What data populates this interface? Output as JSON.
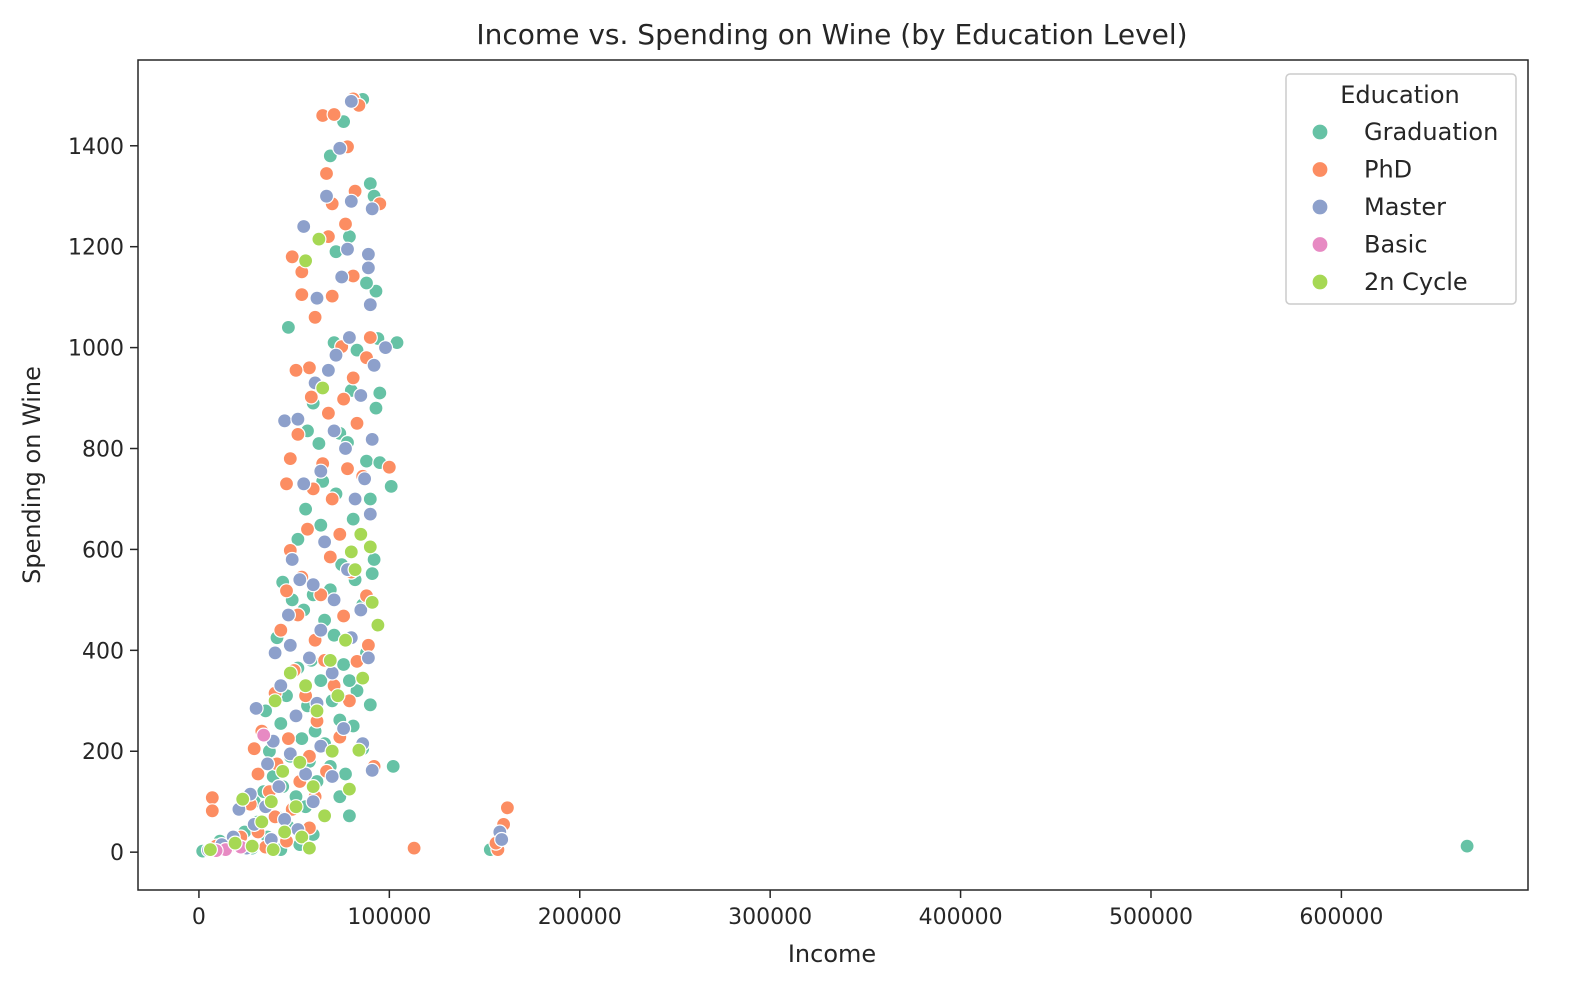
{
  "chart_data": {
    "type": "scatter",
    "title": "Income vs. Spending on Wine (by Education Level)",
    "xlabel": "Income",
    "ylabel": "Spending on Wine",
    "xlim": [
      -32000,
      698000
    ],
    "ylim": [
      -75,
      1570
    ],
    "xticks": [
      0,
      100000,
      200000,
      300000,
      400000,
      500000,
      600000
    ],
    "xtick_labels": [
      "0",
      "100000",
      "200000",
      "300000",
      "400000",
      "500000",
      "600000"
    ],
    "yticks": [
      0,
      200,
      400,
      600,
      800,
      1000,
      1200,
      1400
    ],
    "ytick_labels": [
      "0",
      "200",
      "400",
      "600",
      "800",
      "1000",
      "1200",
      "1400"
    ],
    "grid": false,
    "legend": {
      "title": "Education",
      "position": "upper-right"
    },
    "series": [
      {
        "name": "Graduation",
        "color": "#66c2a5",
        "points": [
          [
            86000,
            1492
          ],
          [
            76000,
            1448
          ],
          [
            69000,
            1380
          ],
          [
            75000,
            1395
          ],
          [
            90000,
            1325
          ],
          [
            92000,
            1300
          ],
          [
            79000,
            1220
          ],
          [
            72000,
            1190
          ],
          [
            93000,
            1112
          ],
          [
            88000,
            1128
          ],
          [
            47000,
            1040
          ],
          [
            104000,
            1010
          ],
          [
            94000,
            1018
          ],
          [
            83000,
            995
          ],
          [
            71000,
            1010
          ],
          [
            95000,
            910
          ],
          [
            93000,
            880
          ],
          [
            80000,
            915
          ],
          [
            60000,
            890
          ],
          [
            74000,
            830
          ],
          [
            78000,
            812
          ],
          [
            57000,
            835
          ],
          [
            63000,
            810
          ],
          [
            88000,
            775
          ],
          [
            95000,
            772
          ],
          [
            101000,
            725
          ],
          [
            90000,
            700
          ],
          [
            65000,
            735
          ],
          [
            72000,
            710
          ],
          [
            56000,
            680
          ],
          [
            81000,
            660
          ],
          [
            64000,
            648
          ],
          [
            92000,
            580
          ],
          [
            91000,
            552
          ],
          [
            52000,
            620
          ],
          [
            75000,
            570
          ],
          [
            82000,
            540
          ],
          [
            69000,
            520
          ],
          [
            60000,
            510
          ],
          [
            86000,
            490
          ],
          [
            66000,
            460
          ],
          [
            44000,
            535
          ],
          [
            49000,
            500
          ],
          [
            55000,
            480
          ],
          [
            41000,
            425
          ],
          [
            71000,
            430
          ],
          [
            88000,
            395
          ],
          [
            59000,
            380
          ],
          [
            76000,
            372
          ],
          [
            52000,
            365
          ],
          [
            64000,
            340
          ],
          [
            83000,
            320
          ],
          [
            79000,
            340
          ],
          [
            46000,
            310
          ],
          [
            35000,
            280
          ],
          [
            90000,
            292
          ],
          [
            70000,
            300
          ],
          [
            57000,
            290
          ],
          [
            43000,
            255
          ],
          [
            61000,
            240
          ],
          [
            74000,
            262
          ],
          [
            81000,
            250
          ],
          [
            54000,
            225
          ],
          [
            37000,
            200
          ],
          [
            66000,
            215
          ],
          [
            86000,
            205
          ],
          [
            48000,
            190
          ],
          [
            58000,
            180
          ],
          [
            69000,
            170
          ],
          [
            102000,
            170
          ],
          [
            77000,
            155
          ],
          [
            39000,
            150
          ],
          [
            44000,
            130
          ],
          [
            62000,
            140
          ],
          [
            34000,
            120
          ],
          [
            51000,
            110
          ],
          [
            29000,
            100
          ],
          [
            74000,
            110
          ],
          [
            56000,
            90
          ],
          [
            41000,
            70
          ],
          [
            79000,
            72
          ],
          [
            31000,
            60
          ],
          [
            47000,
            50
          ],
          [
            24000,
            40
          ],
          [
            60000,
            35
          ],
          [
            36000,
            30
          ],
          [
            19000,
            20
          ],
          [
            11000,
            22
          ],
          [
            53000,
            15
          ],
          [
            28000,
            8
          ],
          [
            7000,
            5
          ],
          [
            43000,
            5
          ],
          [
            2000,
            2
          ],
          [
            153000,
            5
          ],
          [
            666000,
            12
          ]
        ]
      },
      {
        "name": "PhD",
        "color": "#fc8d62",
        "points": [
          [
            81000,
            1493
          ],
          [
            84000,
            1480
          ],
          [
            65000,
            1460
          ],
          [
            71000,
            1462
          ],
          [
            78000,
            1398
          ],
          [
            67000,
            1345
          ],
          [
            82000,
            1310
          ],
          [
            95000,
            1285
          ],
          [
            70000,
            1285
          ],
          [
            77000,
            1245
          ],
          [
            68000,
            1220
          ],
          [
            49000,
            1180
          ],
          [
            54000,
            1150
          ],
          [
            81000,
            1142
          ],
          [
            70000,
            1102
          ],
          [
            54000,
            1105
          ],
          [
            61000,
            1060
          ],
          [
            90000,
            1020
          ],
          [
            75000,
            1002
          ],
          [
            88000,
            980
          ],
          [
            58000,
            960
          ],
          [
            51000,
            955
          ],
          [
            81000,
            940
          ],
          [
            76000,
            898
          ],
          [
            59000,
            902
          ],
          [
            68000,
            870
          ],
          [
            52000,
            828
          ],
          [
            83000,
            850
          ],
          [
            100000,
            763
          ],
          [
            78000,
            760
          ],
          [
            48000,
            780
          ],
          [
            65000,
            770
          ],
          [
            86000,
            745
          ],
          [
            46000,
            730
          ],
          [
            70000,
            700
          ],
          [
            60000,
            720
          ],
          [
            57000,
            640
          ],
          [
            74000,
            630
          ],
          [
            48000,
            598
          ],
          [
            69000,
            585
          ],
          [
            80000,
            555
          ],
          [
            54000,
            545
          ],
          [
            64000,
            510
          ],
          [
            88000,
            508
          ],
          [
            46000,
            518
          ],
          [
            76000,
            468
          ],
          [
            52000,
            470
          ],
          [
            89000,
            410
          ],
          [
            61000,
            420
          ],
          [
            43000,
            440
          ],
          [
            83000,
            378
          ],
          [
            66000,
            380
          ],
          [
            50000,
            360
          ],
          [
            71000,
            330
          ],
          [
            56000,
            310
          ],
          [
            40000,
            315
          ],
          [
            79000,
            300
          ],
          [
            33000,
            240
          ],
          [
            62000,
            260
          ],
          [
            29000,
            205
          ],
          [
            47000,
            225
          ],
          [
            74000,
            228
          ],
          [
            58000,
            190
          ],
          [
            41000,
            175
          ],
          [
            67000,
            160
          ],
          [
            92000,
            170
          ],
          [
            31000,
            155
          ],
          [
            53000,
            140
          ],
          [
            37000,
            120
          ],
          [
            61000,
            110
          ],
          [
            27000,
            95
          ],
          [
            49000,
            85
          ],
          [
            7000,
            108
          ],
          [
            7000,
            82
          ],
          [
            40000,
            70
          ],
          [
            58000,
            48
          ],
          [
            31000,
            40
          ],
          [
            22000,
            30
          ],
          [
            46000,
            22
          ],
          [
            9000,
            12
          ],
          [
            15000,
            8
          ],
          [
            35000,
            10
          ],
          [
            113000,
            8
          ],
          [
            157000,
            5
          ],
          [
            156000,
            18
          ],
          [
            160000,
            55
          ],
          [
            162000,
            88
          ]
        ]
      },
      {
        "name": "Master",
        "color": "#8da0cb",
        "points": [
          [
            80000,
            1488
          ],
          [
            74000,
            1395
          ],
          [
            67000,
            1300
          ],
          [
            80000,
            1290
          ],
          [
            91000,
            1275
          ],
          [
            55000,
            1240
          ],
          [
            78000,
            1195
          ],
          [
            89000,
            1185
          ],
          [
            89000,
            1158
          ],
          [
            75000,
            1140
          ],
          [
            62000,
            1098
          ],
          [
            90000,
            1085
          ],
          [
            79000,
            1020
          ],
          [
            98000,
            1000
          ],
          [
            72000,
            985
          ],
          [
            92000,
            965
          ],
          [
            68000,
            955
          ],
          [
            61000,
            930
          ],
          [
            85000,
            905
          ],
          [
            45000,
            855
          ],
          [
            52000,
            858
          ],
          [
            71000,
            835
          ],
          [
            91000,
            818
          ],
          [
            77000,
            800
          ],
          [
            64000,
            755
          ],
          [
            87000,
            740
          ],
          [
            55000,
            730
          ],
          [
            82000,
            700
          ],
          [
            90000,
            670
          ],
          [
            66000,
            615
          ],
          [
            49000,
            580
          ],
          [
            78000,
            560
          ],
          [
            60000,
            530
          ],
          [
            53000,
            540
          ],
          [
            71000,
            500
          ],
          [
            85000,
            480
          ],
          [
            47000,
            470
          ],
          [
            64000,
            440
          ],
          [
            80000,
            425
          ],
          [
            48000,
            410
          ],
          [
            40000,
            395
          ],
          [
            58000,
            385
          ],
          [
            89000,
            385
          ],
          [
            70000,
            355
          ],
          [
            43000,
            330
          ],
          [
            62000,
            295
          ],
          [
            30000,
            285
          ],
          [
            51000,
            270
          ],
          [
            76000,
            245
          ],
          [
            39000,
            220
          ],
          [
            64000,
            210
          ],
          [
            86000,
            215
          ],
          [
            48000,
            195
          ],
          [
            91000,
            162
          ],
          [
            36000,
            175
          ],
          [
            56000,
            155
          ],
          [
            70000,
            150
          ],
          [
            42000,
            130
          ],
          [
            27000,
            115
          ],
          [
            60000,
            100
          ],
          [
            35000,
            90
          ],
          [
            21000,
            85
          ],
          [
            45000,
            65
          ],
          [
            29000,
            55
          ],
          [
            52000,
            45
          ],
          [
            18000,
            30
          ],
          [
            38000,
            25
          ],
          [
            12000,
            15
          ],
          [
            25000,
            8
          ],
          [
            5000,
            4
          ],
          [
            158000,
            40
          ],
          [
            159000,
            25
          ]
        ]
      },
      {
        "name": "Basic",
        "color": "#e78ac3",
        "points": [
          [
            34000,
            232
          ],
          [
            14000,
            5
          ],
          [
            22000,
            10
          ],
          [
            9000,
            3
          ]
        ]
      },
      {
        "name": "2n Cycle",
        "color": "#a6d854",
        "points": [
          [
            63000,
            1215
          ],
          [
            56000,
            1172
          ],
          [
            65000,
            920
          ],
          [
            85000,
            630
          ],
          [
            90000,
            605
          ],
          [
            80000,
            595
          ],
          [
            82000,
            560
          ],
          [
            91000,
            495
          ],
          [
            94000,
            450
          ],
          [
            77000,
            420
          ],
          [
            69000,
            380
          ],
          [
            86000,
            345
          ],
          [
            48000,
            355
          ],
          [
            56000,
            330
          ],
          [
            73000,
            310
          ],
          [
            40000,
            300
          ],
          [
            62000,
            280
          ],
          [
            84000,
            202
          ],
          [
            70000,
            200
          ],
          [
            53000,
            178
          ],
          [
            44000,
            160
          ],
          [
            60000,
            130
          ],
          [
            79000,
            125
          ],
          [
            38000,
            100
          ],
          [
            23000,
            105
          ],
          [
            51000,
            90
          ],
          [
            66000,
            72
          ],
          [
            33000,
            60
          ],
          [
            45000,
            40
          ],
          [
            54000,
            30
          ],
          [
            19000,
            18
          ],
          [
            28000,
            12
          ],
          [
            6000,
            5
          ],
          [
            39000,
            5
          ],
          [
            58000,
            8
          ]
        ]
      }
    ]
  }
}
